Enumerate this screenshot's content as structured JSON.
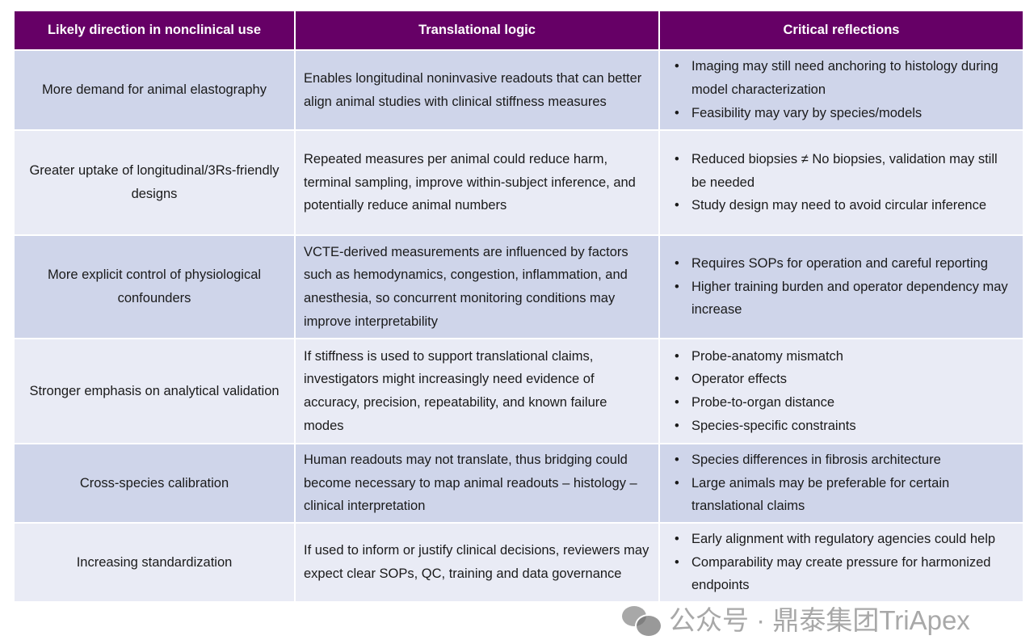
{
  "headers": [
    "Likely direction in nonclinical use",
    "Translational logic",
    "Critical reflections"
  ],
  "rows": [
    {
      "direction": "More demand for animal elastography",
      "logic": "Enables longitudinal noninvasive readouts that can better align animal studies with clinical stiffness measures",
      "reflections": [
        "Imaging may still need anchoring to histology during model characterization",
        "Feasibility may vary by species/models"
      ]
    },
    {
      "direction": "Greater uptake of longitudinal/3Rs-friendly designs",
      "logic": "Repeated measures per animal could reduce harm, terminal sampling, improve within-subject inference, and potentially reduce animal numbers",
      "reflections": [
        "Reduced biopsies ≠ No biopsies, validation may still be needed",
        "Study design may need to avoid circular inference"
      ]
    },
    {
      "direction": "More explicit control of physiological confounders",
      "logic": "VCTE-derived measurements are influenced by factors such as hemodynamics, congestion, inflammation, and anesthesia, so concurrent monitoring conditions may improve interpretability",
      "reflections": [
        "Requires SOPs for operation and careful reporting",
        "Higher training burden and operator dependency may increase"
      ]
    },
    {
      "direction": "Stronger emphasis on analytical validation",
      "logic": "If stiffness is used to support translational claims, investigators might increasingly need evidence of accuracy, precision, repeatability, and known failure modes",
      "reflections": [
        "Probe-anatomy mismatch",
        "Operator effects",
        "Probe-to-organ distance",
        "Species-specific constraints"
      ]
    },
    {
      "direction": "Cross-species calibration",
      "logic": "Human readouts may not translate, thus bridging could become necessary to map animal readouts – histology – clinical interpretation",
      "reflections": [
        "Species differences in fibrosis architecture",
        "Large animals may be preferable for certain translational claims"
      ]
    },
    {
      "direction": "Increasing standardization",
      "logic": "If used to inform or justify clinical decisions, reviewers may expect clear SOPs, QC, training and data governance",
      "reflections": [
        "Early alignment with regulatory agencies could help",
        "Comparability may create pressure for harmonized endpoints"
      ]
    }
  ],
  "watermark": "公众号 · 鼎泰集团TriApex",
  "colors": {
    "header": "#660066",
    "row_odd": "#cfd5ea",
    "row_even": "#e9ebf5"
  }
}
